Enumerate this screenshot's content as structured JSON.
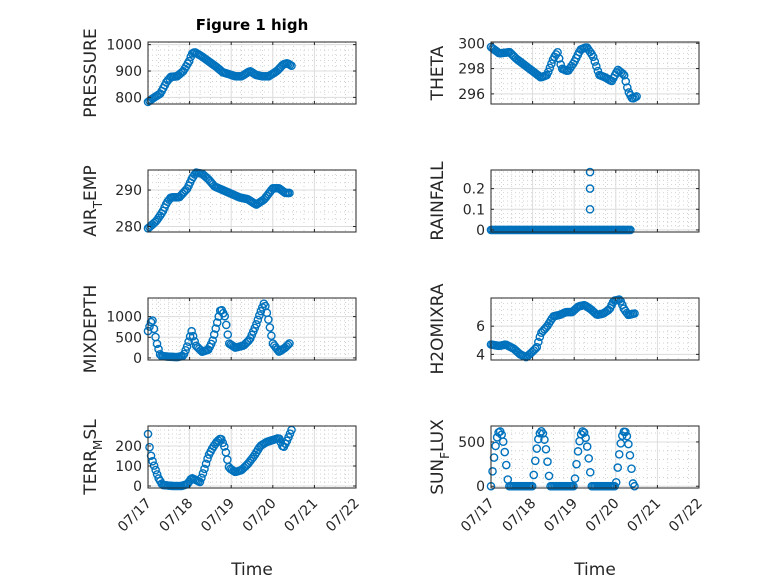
{
  "chart_data": [
    {
      "id": "pressure",
      "type": "scatter",
      "title": "Figure 1 high",
      "ylabel": "PRESSURE",
      "ylabel_parts": [],
      "xlabel": "",
      "xlim": [
        0,
        5
      ],
      "ylim": [
        775,
        1010
      ],
      "yticks": [
        800,
        900,
        1000
      ],
      "yticklabels": [
        "800",
        "900",
        "1000"
      ],
      "xticklabels": [],
      "knots": [
        [
          0.0,
          783
        ],
        [
          0.15,
          800
        ],
        [
          0.3,
          815
        ],
        [
          0.45,
          860
        ],
        [
          0.55,
          878
        ],
        [
          0.7,
          880
        ],
        [
          0.85,
          900
        ],
        [
          1.0,
          940
        ],
        [
          1.05,
          965
        ],
        [
          1.12,
          972
        ],
        [
          1.3,
          955
        ],
        [
          1.5,
          932
        ],
        [
          1.65,
          915
        ],
        [
          1.8,
          895
        ],
        [
          1.95,
          888
        ],
        [
          2.1,
          880
        ],
        [
          2.25,
          880
        ],
        [
          2.45,
          900
        ],
        [
          2.6,
          885
        ],
        [
          2.75,
          880
        ],
        [
          2.9,
          880
        ],
        [
          3.1,
          900
        ],
        [
          3.25,
          925
        ],
        [
          3.35,
          930
        ],
        [
          3.45,
          920
        ]
      ],
      "x_range": [
        0.0,
        3.45
      ],
      "n_points": 95,
      "grid": true
    },
    {
      "id": "theta",
      "type": "scatter",
      "title": "",
      "ylabel": "THETA",
      "ylabel_parts": [],
      "xlabel": "",
      "xlim": [
        0,
        5
      ],
      "ylim": [
        295.2,
        300.1
      ],
      "yticks": [
        296,
        298,
        300
      ],
      "yticklabels": [
        "296",
        "298",
        "300"
      ],
      "xticklabels": [],
      "knots": [
        [
          0.0,
          299.7
        ],
        [
          0.2,
          299.2
        ],
        [
          0.45,
          299.3
        ],
        [
          0.6,
          298.8
        ],
        [
          0.8,
          298.3
        ],
        [
          1.0,
          297.8
        ],
        [
          1.2,
          297.3
        ],
        [
          1.35,
          297.5
        ],
        [
          1.5,
          298.8
        ],
        [
          1.6,
          299.3
        ],
        [
          1.7,
          298.0
        ],
        [
          1.85,
          297.8
        ],
        [
          2.0,
          298.5
        ],
        [
          2.15,
          299.5
        ],
        [
          2.3,
          299.7
        ],
        [
          2.45,
          299.0
        ],
        [
          2.6,
          297.5
        ],
        [
          2.75,
          297.3
        ],
        [
          2.9,
          297.0
        ],
        [
          3.05,
          297.9
        ],
        [
          3.2,
          297.5
        ],
        [
          3.3,
          296.2
        ],
        [
          3.4,
          295.6
        ],
        [
          3.5,
          295.8
        ]
      ],
      "x_range": [
        0.0,
        3.5
      ],
      "n_points": 95,
      "grid": true
    },
    {
      "id": "air-temp",
      "type": "scatter",
      "title": "",
      "ylabel": "",
      "ylabel_parts": [
        "AIR",
        "T",
        "EMP"
      ],
      "xlabel": "",
      "xlim": [
        0,
        5
      ],
      "ylim": [
        278.5,
        295.5
      ],
      "yticks": [
        280,
        290
      ],
      "yticklabels": [
        "280",
        "290"
      ],
      "xticklabels": [],
      "knots": [
        [
          0.0,
          279.5
        ],
        [
          0.2,
          281.5
        ],
        [
          0.35,
          284
        ],
        [
          0.45,
          286.5
        ],
        [
          0.55,
          288
        ],
        [
          0.75,
          288
        ],
        [
          0.95,
          290.5
        ],
        [
          1.05,
          293
        ],
        [
          1.15,
          294.8
        ],
        [
          1.3,
          294.5
        ],
        [
          1.45,
          293
        ],
        [
          1.6,
          291
        ],
        [
          1.8,
          290
        ],
        [
          2.0,
          289
        ],
        [
          2.2,
          288
        ],
        [
          2.4,
          287.5
        ],
        [
          2.6,
          286
        ],
        [
          2.8,
          287.5
        ],
        [
          3.0,
          290.5
        ],
        [
          3.15,
          290.5
        ],
        [
          3.3,
          289.2
        ],
        [
          3.4,
          289.2
        ]
      ],
      "x_range": [
        0.0,
        3.4
      ],
      "n_points": 95,
      "grid": true
    },
    {
      "id": "rainfall",
      "type": "scatter",
      "title": "",
      "ylabel": "RAINFALL",
      "ylabel_parts": [],
      "xlabel": "",
      "xlim": [
        0,
        5
      ],
      "ylim": [
        -0.01,
        0.29
      ],
      "yticks": [
        0,
        0.1,
        0.2
      ],
      "yticklabels": [
        "0",
        "0.1",
        "0.2"
      ],
      "xticklabels": [],
      "knots": [
        [
          0.0,
          0
        ],
        [
          3.35,
          0
        ]
      ],
      "extra_points": [
        [
          2.38,
          0.28
        ],
        [
          2.38,
          0.2
        ],
        [
          2.38,
          0.1
        ]
      ],
      "x_range": [
        0.0,
        3.35
      ],
      "n_points": 95,
      "grid": true
    },
    {
      "id": "mixdepth",
      "type": "scatter",
      "title": "",
      "ylabel": "MIXDEPTH",
      "ylabel_parts": [],
      "xlabel": "",
      "xlim": [
        0,
        5
      ],
      "ylim": [
        -50,
        1450
      ],
      "yticks": [
        0,
        500,
        1000
      ],
      "yticklabels": [
        "0",
        "500",
        "1000"
      ],
      "xticklabels": [],
      "knots": [
        [
          0.0,
          650
        ],
        [
          0.1,
          950
        ],
        [
          0.2,
          400
        ],
        [
          0.3,
          50
        ],
        [
          0.5,
          30
        ],
        [
          0.7,
          20
        ],
        [
          0.85,
          50
        ],
        [
          0.95,
          300
        ],
        [
          1.05,
          650
        ],
        [
          1.15,
          300
        ],
        [
          1.3,
          150
        ],
        [
          1.45,
          200
        ],
        [
          1.55,
          400
        ],
        [
          1.65,
          800
        ],
        [
          1.75,
          1200
        ],
        [
          1.85,
          1000
        ],
        [
          1.95,
          350
        ],
        [
          2.1,
          250
        ],
        [
          2.3,
          300
        ],
        [
          2.45,
          450
        ],
        [
          2.6,
          800
        ],
        [
          2.7,
          1100
        ],
        [
          2.8,
          1350
        ],
        [
          2.9,
          900
        ],
        [
          3.0,
          350
        ],
        [
          3.15,
          150
        ],
        [
          3.3,
          250
        ],
        [
          3.4,
          350
        ]
      ],
      "x_range": [
        0.0,
        3.4
      ],
      "n_points": 95,
      "grid": true
    },
    {
      "id": "h2omixra",
      "type": "scatter",
      "title": "",
      "ylabel": "H2OMIXRA",
      "ylabel_parts": [],
      "xlabel": "",
      "xlim": [
        0,
        5
      ],
      "ylim": [
        3.6,
        8.0
      ],
      "yticks": [
        4,
        6
      ],
      "yticklabels": [
        "4",
        "6"
      ],
      "xticklabels": [],
      "knots": [
        [
          0.0,
          4.7
        ],
        [
          0.2,
          4.6
        ],
        [
          0.35,
          4.7
        ],
        [
          0.55,
          4.4
        ],
        [
          0.7,
          4.0
        ],
        [
          0.85,
          3.8
        ],
        [
          1.0,
          4.2
        ],
        [
          1.1,
          4.5
        ],
        [
          1.2,
          5.5
        ],
        [
          1.35,
          6.0
        ],
        [
          1.5,
          6.7
        ],
        [
          1.65,
          6.8
        ],
        [
          1.8,
          7.0
        ],
        [
          1.95,
          7.0
        ],
        [
          2.1,
          7.4
        ],
        [
          2.25,
          7.5
        ],
        [
          2.4,
          7.2
        ],
        [
          2.55,
          6.8
        ],
        [
          2.7,
          6.9
        ],
        [
          2.85,
          7.2
        ],
        [
          2.95,
          7.8
        ],
        [
          3.1,
          7.9
        ],
        [
          3.2,
          7.2
        ],
        [
          3.3,
          6.8
        ],
        [
          3.45,
          6.9
        ]
      ],
      "x_range": [
        0.0,
        3.45
      ],
      "n_points": 95,
      "grid": true
    },
    {
      "id": "terr-msl",
      "type": "scatter",
      "title": "",
      "ylabel": "",
      "ylabel_parts": [
        "TERR",
        "M",
        "SL"
      ],
      "xlabel": "Time",
      "xlim": [
        0,
        5
      ],
      "ylim": [
        -10,
        300
      ],
      "yticks": [
        0,
        100,
        200
      ],
      "yticklabels": [
        "0",
        "100",
        "200"
      ],
      "xticklabels": [
        "07/17",
        "07/18",
        "07/19",
        "07/20",
        "07/21",
        "07/22"
      ],
      "knots": [
        [
          0.0,
          260
        ],
        [
          0.05,
          170
        ],
        [
          0.1,
          130
        ],
        [
          0.15,
          100
        ],
        [
          0.25,
          40
        ],
        [
          0.35,
          5
        ],
        [
          0.6,
          0
        ],
        [
          0.8,
          0
        ],
        [
          0.95,
          10
        ],
        [
          1.05,
          40
        ],
        [
          1.15,
          30
        ],
        [
          1.25,
          20
        ],
        [
          1.35,
          80
        ],
        [
          1.45,
          150
        ],
        [
          1.55,
          190
        ],
        [
          1.65,
          220
        ],
        [
          1.75,
          240
        ],
        [
          1.85,
          190
        ],
        [
          1.95,
          90
        ],
        [
          2.1,
          70
        ],
        [
          2.25,
          80
        ],
        [
          2.4,
          110
        ],
        [
          2.55,
          150
        ],
        [
          2.7,
          200
        ],
        [
          2.85,
          220
        ],
        [
          3.0,
          230
        ],
        [
          3.15,
          240
        ],
        [
          3.25,
          190
        ],
        [
          3.35,
          230
        ],
        [
          3.45,
          280
        ]
      ],
      "x_range": [
        0.0,
        3.45
      ],
      "n_points": 95,
      "grid": true
    },
    {
      "id": "sun-flux",
      "type": "scatter",
      "title": "",
      "ylabel": "",
      "ylabel_parts": [
        "SUN",
        "F",
        "LUX"
      ],
      "xlabel": "Time",
      "xlim": [
        0,
        5
      ],
      "ylim": [
        -20,
        680
      ],
      "yticks": [
        0,
        500
      ],
      "yticklabels": [
        "0",
        "500"
      ],
      "xticklabels": [
        "07/17",
        "07/18",
        "07/19",
        "07/20",
        "07/21",
        "07/22"
      ],
      "diurnal": {
        "peak": 620,
        "day_start": 0.0,
        "day_len": 0.42,
        "period": 1.0
      },
      "x_range": [
        0.0,
        3.45
      ],
      "n_points": 95,
      "grid": true
    }
  ]
}
